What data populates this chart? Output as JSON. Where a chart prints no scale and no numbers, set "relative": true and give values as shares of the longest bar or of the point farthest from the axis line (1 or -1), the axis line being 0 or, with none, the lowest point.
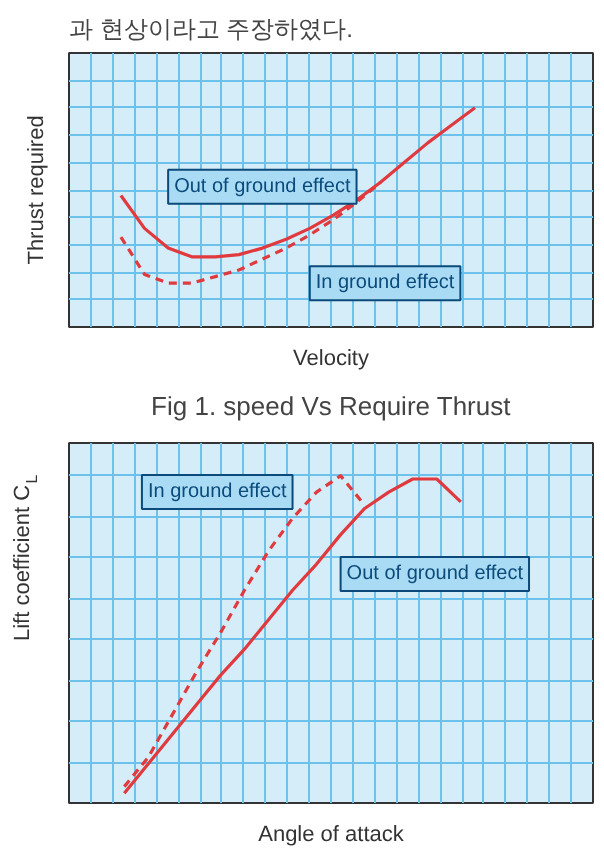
{
  "chart_data": [
    {
      "type": "line",
      "relative": true,
      "xlabel": "Velocity",
      "ylabel": "Thrust required",
      "grid": true,
      "annotations": [
        "과 현상이라고 주장하였다.",
        "Fig 1. speed Vs Require Thrust"
      ],
      "categories": [
        null,
        null,
        null,
        null,
        null,
        null,
        null,
        null,
        null,
        null,
        null,
        null,
        null,
        null,
        null,
        null
      ],
      "series": [
        {
          "name": "Out of ground effect",
          "color": "#e0393e",
          "line_style": "solid",
          "values": [
            0.6,
            0.45,
            0.36,
            0.32,
            0.32,
            0.33,
            0.36,
            0.4,
            0.45,
            0.51,
            0.58,
            0.66,
            0.75,
            0.84,
            0.92,
            1.0
          ]
        },
        {
          "name": "In ground effect",
          "color": "#e0393e",
          "line_style": "dashed",
          "values": [
            0.41,
            0.24,
            0.2,
            0.2,
            0.23,
            0.26,
            0.31,
            0.36,
            0.42,
            0.49,
            0.57,
            0.66,
            null,
            null,
            null,
            null
          ]
        }
      ]
    },
    {
      "type": "line",
      "relative": true,
      "xlabel": "Angle of attack",
      "ylabel": "Lift coefficient C$_{L}$",
      "grid": true,
      "categories": [
        null,
        null,
        null,
        null,
        null,
        null,
        null,
        null,
        null,
        null,
        null,
        null,
        null,
        null,
        null
      ],
      "series": [
        {
          "name": "In ground effect",
          "color": "#e0393e",
          "line_style": "dashed",
          "values": [
            0.05,
            0.14,
            0.27,
            0.4,
            0.52,
            0.65,
            0.77,
            0.87,
            0.95,
            1.0,
            0.91,
            null,
            null,
            null,
            null
          ]
        },
        {
          "name": "Out of ground effect",
          "color": "#e0393e",
          "line_style": "solid",
          "values": [
            0.03,
            0.12,
            0.21,
            0.3,
            0.39,
            0.47,
            0.56,
            0.65,
            0.73,
            0.82,
            0.9,
            0.95,
            0.99,
            0.99,
            0.92
          ]
        }
      ]
    }
  ]
}
